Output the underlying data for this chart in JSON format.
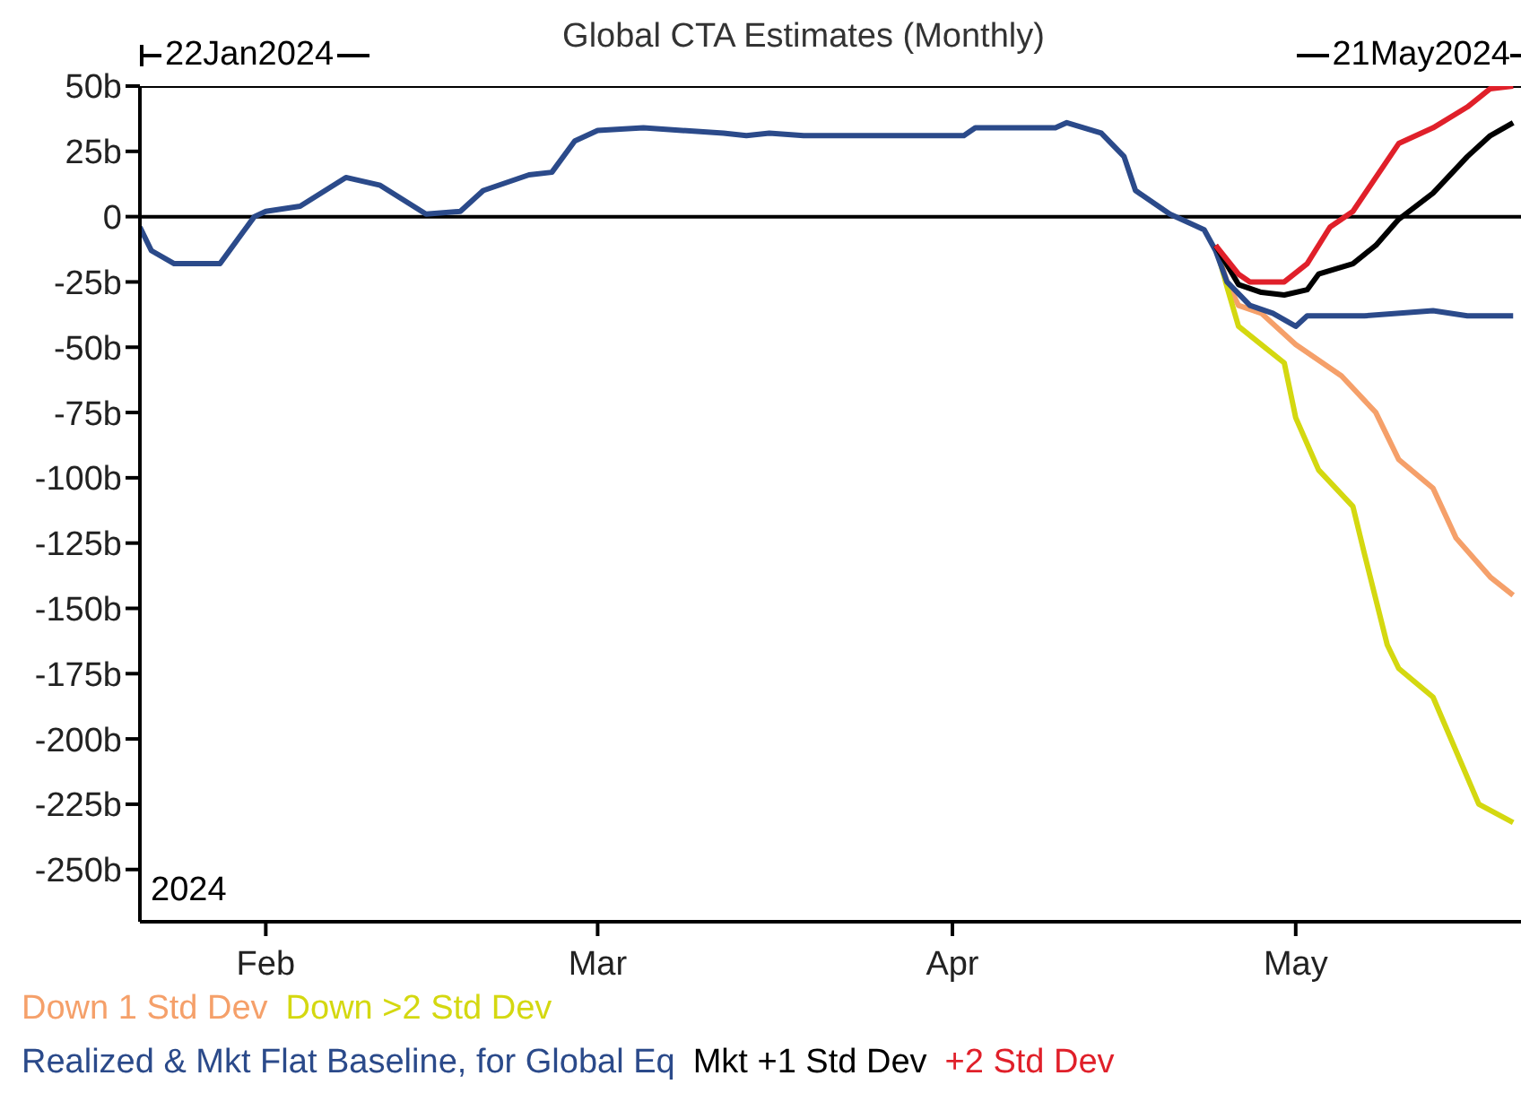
{
  "chart_data": {
    "type": "line",
    "title": "Global CTA Estimates (Monthly)",
    "annotations": [
      "22Jan2024",
      "21May2024",
      "2024"
    ],
    "xlim": [
      "2024-01-21",
      "2024-05-21"
    ],
    "xticks": [
      {
        "value": "2024-02-01",
        "label": "Feb"
      },
      {
        "value": "2024-03-01",
        "label": "Mar"
      },
      {
        "value": "2024-04-01",
        "label": "Apr"
      },
      {
        "value": "2024-05-01",
        "label": "May"
      }
    ],
    "ylim": [
      -270,
      50
    ],
    "yticks": [
      {
        "value": 50,
        "label": "50b"
      },
      {
        "value": 25,
        "label": "25b"
      },
      {
        "value": 0,
        "label": "0"
      },
      {
        "value": -25,
        "label": "-25b"
      },
      {
        "value": -50,
        "label": "-50b"
      },
      {
        "value": -75,
        "label": "-75b"
      },
      {
        "value": -100,
        "label": "-100b"
      },
      {
        "value": -125,
        "label": "-125b"
      },
      {
        "value": -150,
        "label": "-150b"
      },
      {
        "value": -175,
        "label": "-175b"
      },
      {
        "value": -200,
        "label": "-200b"
      },
      {
        "value": -225,
        "label": "-225b"
      },
      {
        "value": -250,
        "label": "-250b"
      }
    ],
    "legend": "bottom",
    "marker": "none",
    "line_style": "solid",
    "ref_lines": [
      {
        "axis": "y",
        "value": 0,
        "label": null,
        "color": "#000000"
      }
    ],
    "series": [
      {
        "name": "Down 1 Std Dev",
        "color": "#f5a06a",
        "x": [
          "2024-04-24",
          "2024-04-25",
          "2024-04-26",
          "2024-04-28",
          "2024-05-01",
          "2024-05-05",
          "2024-05-08",
          "2024-05-10",
          "2024-05-13",
          "2024-05-15",
          "2024-05-18",
          "2024-05-20"
        ],
        "values": [
          -11,
          -25,
          -34,
          -37,
          -49,
          -61,
          -75,
          -93,
          -104,
          -123,
          -138,
          -145
        ]
      },
      {
        "name": "Down >2 Std Dev",
        "color": "#d4d810",
        "x": [
          "2024-04-24",
          "2024-04-25",
          "2024-04-26",
          "2024-04-28",
          "2024-04-30",
          "2024-05-01",
          "2024-05-03",
          "2024-05-06",
          "2024-05-07",
          "2024-05-09",
          "2024-05-10",
          "2024-05-13",
          "2024-05-17",
          "2024-05-20"
        ],
        "values": [
          -11,
          -27,
          -42,
          -49,
          -56,
          -77,
          -97,
          -111,
          -129,
          -164,
          -173,
          -184,
          -225,
          -232
        ]
      },
      {
        "name": "Realized & Mkt Flat Baseline, for Global Eq",
        "color": "#2b4a8a",
        "x": [
          "2024-01-21",
          "2024-01-22",
          "2024-01-24",
          "2024-01-28",
          "2024-01-30",
          "2024-01-31",
          "2024-02-01",
          "2024-02-04",
          "2024-02-08",
          "2024-02-11",
          "2024-02-15",
          "2024-02-18",
          "2024-02-20",
          "2024-02-24",
          "2024-02-26",
          "2024-02-28",
          "2024-03-01",
          "2024-03-05",
          "2024-03-12",
          "2024-03-14",
          "2024-03-16",
          "2024-03-19",
          "2024-04-02",
          "2024-04-03",
          "2024-04-10",
          "2024-04-11",
          "2024-04-14",
          "2024-04-16",
          "2024-04-17",
          "2024-04-20",
          "2024-04-23",
          "2024-04-24",
          "2024-04-25",
          "2024-04-27",
          "2024-04-29",
          "2024-05-01",
          "2024-05-02",
          "2024-05-07",
          "2024-05-13",
          "2024-05-16",
          "2024-05-20"
        ],
        "values": [
          -4,
          -13,
          -18,
          -18,
          -6,
          0,
          2,
          4,
          15,
          12,
          1,
          2,
          10,
          16,
          17,
          29,
          33,
          34,
          32,
          31,
          32,
          31,
          31,
          34,
          34,
          36,
          32,
          23,
          10,
          1,
          -5,
          -13,
          -25,
          -34,
          -37,
          -42,
          -38,
          -38,
          -36,
          -38,
          -38
        ]
      },
      {
        "name": "Mkt +1 Std Dev",
        "color": "#000000",
        "x": [
          "2024-04-24",
          "2024-04-26",
          "2024-04-28",
          "2024-04-30",
          "2024-05-02",
          "2024-05-03",
          "2024-05-06",
          "2024-05-08",
          "2024-05-10",
          "2024-05-13",
          "2024-05-16",
          "2024-05-18",
          "2024-05-20"
        ],
        "values": [
          -11,
          -26,
          -29,
          -30,
          -28,
          -22,
          -18,
          -11,
          -1,
          9,
          23,
          31,
          36
        ]
      },
      {
        "name": "+2 Std Dev",
        "color": "#e0202a",
        "x": [
          "2024-04-24",
          "2024-04-26",
          "2024-04-27",
          "2024-04-30",
          "2024-05-02",
          "2024-05-04",
          "2024-05-06",
          "2024-05-10",
          "2024-05-13",
          "2024-05-16",
          "2024-05-18",
          "2024-05-20"
        ],
        "values": [
          -11,
          -22,
          -25,
          -25,
          -18,
          -4,
          2,
          28,
          34,
          42,
          49,
          50
        ]
      }
    ]
  }
}
